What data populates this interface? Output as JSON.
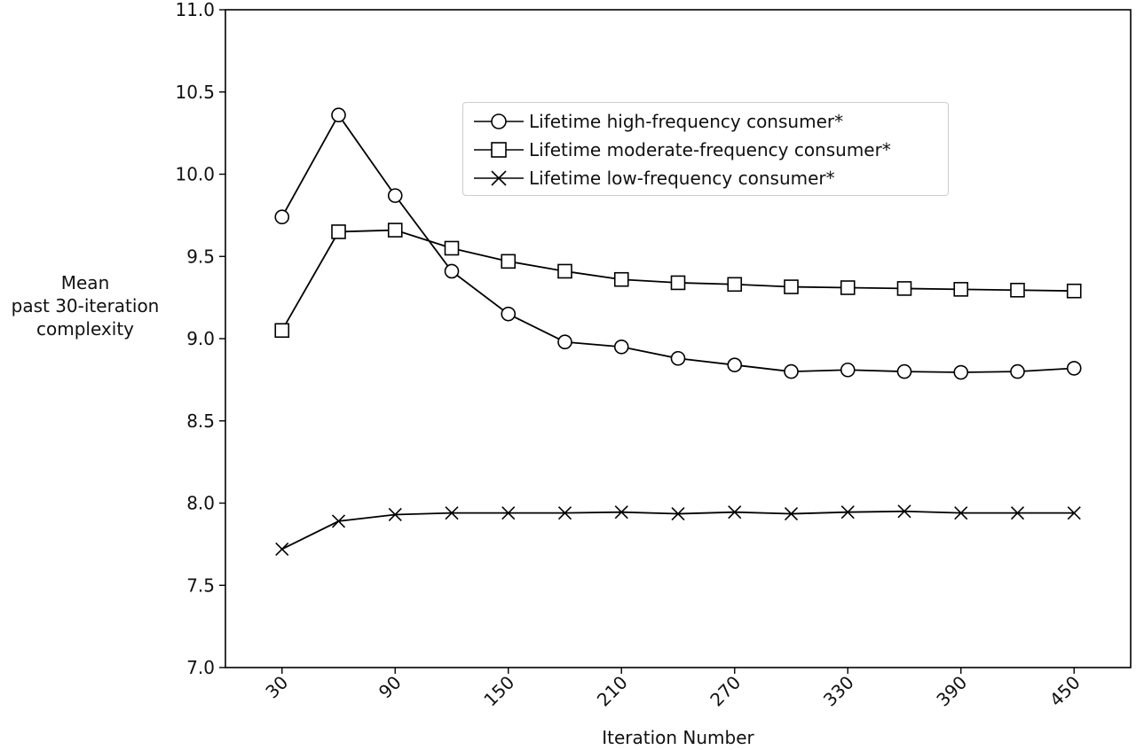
{
  "chart_data": {
    "type": "line",
    "title": "",
    "xlabel": "Iteration Number",
    "ylabel": [
      "Mean",
      "past 30-iteration",
      "complexity"
    ],
    "x": [
      30,
      60,
      90,
      120,
      150,
      180,
      210,
      240,
      270,
      300,
      330,
      360,
      390,
      420,
      450
    ],
    "x_ticks": [
      30,
      90,
      150,
      210,
      270,
      330,
      390,
      450
    ],
    "xlim": [
      0,
      480
    ],
    "ylim": [
      7.0,
      11.0
    ],
    "y_ticks": [
      "7.0",
      "7.5",
      "8.0",
      "8.5",
      "9.0",
      "9.5",
      "10.0",
      "10.5",
      "11.0"
    ],
    "grid": false,
    "legend_position": "upper-center",
    "series": [
      {
        "name": "Lifetime high-frequency consumer*",
        "marker": "circle",
        "color": "#000000",
        "values": [
          9.74,
          10.36,
          9.87,
          9.41,
          9.15,
          8.98,
          8.95,
          8.88,
          8.84,
          8.8,
          8.81,
          8.8,
          8.795,
          8.8,
          8.82
        ]
      },
      {
        "name": "Lifetime moderate-frequency consumer*",
        "marker": "square",
        "color": "#000000",
        "values": [
          9.05,
          9.65,
          9.66,
          9.55,
          9.47,
          9.41,
          9.36,
          9.34,
          9.33,
          9.315,
          9.31,
          9.305,
          9.3,
          9.295,
          9.29
        ]
      },
      {
        "name": "Lifetime low-frequency consumer*",
        "marker": "x",
        "color": "#000000",
        "values": [
          7.72,
          7.89,
          7.93,
          7.94,
          7.94,
          7.94,
          7.945,
          7.935,
          7.945,
          7.935,
          7.945,
          7.95,
          7.94,
          7.94,
          7.94
        ]
      }
    ]
  }
}
